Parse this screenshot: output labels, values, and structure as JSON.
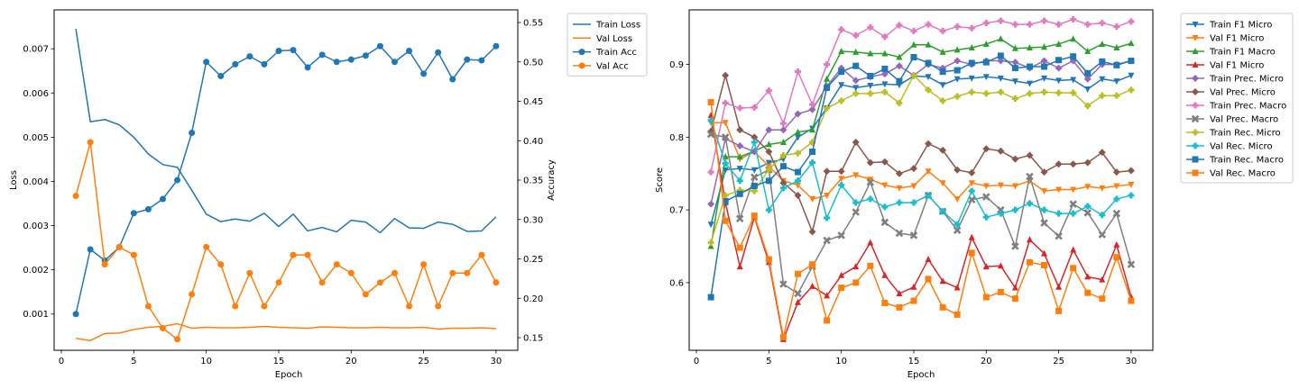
{
  "chart_data": [
    {
      "type": "line",
      "title": "",
      "xlabel": "Epoch",
      "ylabel": "Loss",
      "y2label": "Accuracy",
      "xlim": [
        -0.5,
        31.5
      ],
      "ylim": [
        0.00018,
        0.00788
      ],
      "y2lim": [
        0.134,
        0.566
      ],
      "xticks": [
        0,
        5,
        10,
        15,
        20,
        25,
        30
      ],
      "yticks": [
        0.001,
        0.002,
        0.003,
        0.004,
        0.005,
        0.006,
        0.007
      ],
      "ytick_labels": [
        "0.001",
        "0.002",
        "0.003",
        "0.004",
        "0.005",
        "0.006",
        "0.007"
      ],
      "y2ticks": [
        0.15,
        0.2,
        0.25,
        0.3,
        0.35,
        0.4,
        0.45,
        0.5,
        0.55
      ],
      "y2tick_labels": [
        "0.15",
        "0.20",
        "0.25",
        "0.30",
        "0.35",
        "0.40",
        "0.45",
        "0.50",
        "0.55"
      ],
      "grid": false,
      "legend_position": "outside-upper-right",
      "x": [
        1,
        2,
        3,
        4,
        5,
        6,
        7,
        8,
        9,
        10,
        11,
        12,
        13,
        14,
        15,
        16,
        17,
        18,
        19,
        20,
        21,
        22,
        23,
        24,
        25,
        26,
        27,
        28,
        29,
        30
      ],
      "series": [
        {
          "name": "Train Loss",
          "axis": "left",
          "color": "#1f77b4",
          "marker": "none",
          "values": [
            0.00745,
            0.00535,
            0.0054,
            0.00528,
            0.005,
            0.00462,
            0.00438,
            0.00432,
            0.0038,
            0.00326,
            0.00309,
            0.00315,
            0.0031,
            0.00328,
            0.00298,
            0.00326,
            0.00288,
            0.00296,
            0.00286,
            0.00312,
            0.00308,
            0.00284,
            0.00316,
            0.00295,
            0.00294,
            0.00308,
            0.00303,
            0.00287,
            0.00288,
            0.0032
          ]
        },
        {
          "name": "Val Loss",
          "axis": "left",
          "color": "#ff7f0e",
          "marker": "none",
          "values": [
            0.00045,
            0.0004,
            0.00056,
            0.00057,
            0.00065,
            0.0007,
            0.00072,
            0.00078,
            0.00068,
            0.0007,
            0.00069,
            0.00069,
            0.0007,
            0.00072,
            0.0007,
            0.00069,
            0.00068,
            0.00071,
            0.0007,
            0.00069,
            0.00069,
            0.0007,
            0.00069,
            0.00069,
            0.0007,
            0.00066,
            0.00068,
            0.00068,
            0.00069,
            0.00067
          ]
        },
        {
          "name": "Train Acc",
          "axis": "right",
          "color": "#1f77b4",
          "marker": "circle",
          "values": [
            0.18,
            0.262,
            0.248,
            0.265,
            0.308,
            0.313,
            0.326,
            0.35,
            0.41,
            0.5,
            0.482,
            0.497,
            0.507,
            0.497,
            0.514,
            0.515,
            0.493,
            0.509,
            0.5,
            0.503,
            0.508,
            0.52,
            0.5,
            0.514,
            0.485,
            0.512,
            0.478,
            0.503,
            0.502,
            0.52
          ]
        },
        {
          "name": "Val Acc",
          "axis": "right",
          "color": "#ff7f0e",
          "marker": "circle",
          "values": [
            0.33,
            0.398,
            0.243,
            0.265,
            0.255,
            0.19,
            0.162,
            0.148,
            0.205,
            0.265,
            0.243,
            0.19,
            0.232,
            0.19,
            0.22,
            0.255,
            0.255,
            0.22,
            0.243,
            0.232,
            0.205,
            0.22,
            0.232,
            0.19,
            0.243,
            0.19,
            0.232,
            0.232,
            0.255,
            0.22
          ]
        }
      ]
    },
    {
      "type": "line",
      "title": "",
      "xlabel": "Epoch",
      "ylabel": "Score",
      "xlim": [
        -0.5,
        31.5
      ],
      "ylim": [
        0.507,
        0.975
      ],
      "xticks": [
        0,
        5,
        10,
        15,
        20,
        25,
        30
      ],
      "yticks": [
        0.6,
        0.7,
        0.8,
        0.9
      ],
      "ytick_labels": [
        "0.6",
        "0.7",
        "0.8",
        "0.9"
      ],
      "grid": false,
      "legend_position": "outside-upper-right",
      "x": [
        1,
        2,
        3,
        4,
        5,
        6,
        7,
        8,
        9,
        10,
        11,
        12,
        13,
        14,
        15,
        16,
        17,
        18,
        19,
        20,
        21,
        22,
        23,
        24,
        25,
        26,
        27,
        28,
        29,
        30
      ],
      "series": [
        {
          "name": "Train F1 Micro",
          "color": "#1f77b4",
          "marker": "tri_down",
          "values": [
            0.68,
            0.755,
            0.757,
            0.755,
            0.765,
            0.77,
            0.8,
            0.812,
            0.84,
            0.872,
            0.868,
            0.871,
            0.873,
            0.872,
            0.884,
            0.883,
            0.872,
            0.88,
            0.881,
            0.883,
            0.881,
            0.877,
            0.874,
            0.881,
            0.878,
            0.879,
            0.866,
            0.88,
            0.877,
            0.885
          ]
        },
        {
          "name": "Val F1 Micro",
          "color": "#ff7f0e",
          "marker": "tri_down",
          "values": [
            0.82,
            0.82,
            0.77,
            0.78,
            0.76,
            0.74,
            0.734,
            0.715,
            0.72,
            0.743,
            0.748,
            0.742,
            0.734,
            0.73,
            0.733,
            0.753,
            0.737,
            0.715,
            0.737,
            0.733,
            0.734,
            0.733,
            0.74,
            0.726,
            0.728,
            0.728,
            0.732,
            0.73,
            0.733,
            0.735
          ]
        },
        {
          "name": "Train F1 Macro",
          "color": "#2ca02c",
          "marker": "tri_up",
          "values": [
            0.65,
            0.773,
            0.773,
            0.781,
            0.79,
            0.793,
            0.807,
            0.81,
            0.88,
            0.918,
            0.917,
            0.915,
            0.915,
            0.91,
            0.927,
            0.927,
            0.917,
            0.92,
            0.923,
            0.928,
            0.935,
            0.922,
            0.923,
            0.924,
            0.928,
            0.935,
            0.918,
            0.928,
            0.923,
            0.929
          ]
        },
        {
          "name": "Val F1 Micro",
          "color": "#d62728",
          "marker": "tri_up",
          "values": [
            0.83,
            0.71,
            0.622,
            0.69,
            0.628,
            0.522,
            0.573,
            0.595,
            0.582,
            0.61,
            0.622,
            0.655,
            0.61,
            0.585,
            0.594,
            0.632,
            0.602,
            0.593,
            0.662,
            0.622,
            0.623,
            0.593,
            0.659,
            0.64,
            0.594,
            0.645,
            0.608,
            0.604,
            0.652,
            0.58
          ]
        },
        {
          "name": "Train Prec. Micro",
          "color": "#9467bd",
          "marker": "diamond",
          "values": [
            0.708,
            0.798,
            0.788,
            0.78,
            0.81,
            0.81,
            0.832,
            0.838,
            0.87,
            0.895,
            0.878,
            0.883,
            0.887,
            0.898,
            0.885,
            0.9,
            0.895,
            0.905,
            0.9,
            0.905,
            0.905,
            0.903,
            0.895,
            0.905,
            0.895,
            0.905,
            0.88,
            0.9,
            0.9,
            0.905
          ]
        },
        {
          "name": "Val Prec. Micro",
          "color": "#8c564b",
          "marker": "diamond",
          "values": [
            0.808,
            0.885,
            0.81,
            0.8,
            0.78,
            0.737,
            0.72,
            0.67,
            0.753,
            0.753,
            0.793,
            0.765,
            0.766,
            0.75,
            0.757,
            0.791,
            0.782,
            0.755,
            0.751,
            0.784,
            0.781,
            0.77,
            0.775,
            0.752,
            0.763,
            0.763,
            0.765,
            0.779,
            0.752,
            0.754
          ]
        },
        {
          "name": "Train Prec. Macro",
          "color": "#e377c2",
          "marker": "plus",
          "values": [
            0.752,
            0.847,
            0.84,
            0.841,
            0.864,
            0.819,
            0.89,
            0.845,
            0.9,
            0.948,
            0.94,
            0.951,
            0.938,
            0.954,
            0.946,
            0.955,
            0.946,
            0.952,
            0.95,
            0.957,
            0.96,
            0.955,
            0.955,
            0.96,
            0.955,
            0.962,
            0.955,
            0.957,
            0.952,
            0.959
          ]
        },
        {
          "name": "Val Prec. Macro",
          "color": "#7f7f7f",
          "marker": "x",
          "values": [
            0.804,
            0.8,
            0.688,
            0.745,
            0.755,
            0.598,
            0.585,
            0.622,
            0.658,
            0.665,
            0.697,
            0.738,
            0.683,
            0.668,
            0.665,
            0.72,
            0.698,
            0.672,
            0.714,
            0.718,
            0.7,
            0.65,
            0.746,
            0.682,
            0.664,
            0.708,
            0.696,
            0.666,
            0.695,
            0.625
          ]
        },
        {
          "name": "Train Rec. Micro",
          "color": "#bcbd22",
          "marker": "plus",
          "values": [
            0.655,
            0.72,
            0.727,
            0.726,
            0.756,
            0.775,
            0.778,
            0.793,
            0.84,
            0.85,
            0.86,
            0.86,
            0.862,
            0.847,
            0.885,
            0.865,
            0.85,
            0.856,
            0.862,
            0.86,
            0.862,
            0.853,
            0.86,
            0.862,
            0.861,
            0.861,
            0.843,
            0.857,
            0.857,
            0.865
          ]
        },
        {
          "name": "Val Rec. Micro",
          "color": "#17becf",
          "marker": "plus",
          "values": [
            0.823,
            0.764,
            0.74,
            0.793,
            0.7,
            0.73,
            0.74,
            0.765,
            0.689,
            0.734,
            0.71,
            0.715,
            0.704,
            0.71,
            0.71,
            0.72,
            0.698,
            0.68,
            0.726,
            0.69,
            0.695,
            0.7,
            0.709,
            0.7,
            0.695,
            0.695,
            0.705,
            0.693,
            0.715,
            0.72
          ]
        },
        {
          "name": "Train Rec. Macro",
          "color": "#1f77b4",
          "marker": "square",
          "values": [
            0.58,
            0.712,
            0.722,
            0.733,
            0.74,
            0.76,
            0.752,
            0.78,
            0.868,
            0.89,
            0.898,
            0.884,
            0.894,
            0.877,
            0.91,
            0.902,
            0.89,
            0.892,
            0.902,
            0.903,
            0.912,
            0.895,
            0.897,
            0.897,
            0.906,
            0.911,
            0.888,
            0.904,
            0.899,
            0.905
          ]
        },
        {
          "name": "Val Rec. Macro",
          "color": "#ff7f0e",
          "marker": "square",
          "values": [
            0.848,
            0.685,
            0.648,
            0.692,
            0.632,
            0.525,
            0.612,
            0.625,
            0.548,
            0.593,
            0.6,
            0.623,
            0.572,
            0.566,
            0.575,
            0.605,
            0.566,
            0.556,
            0.641,
            0.58,
            0.587,
            0.578,
            0.628,
            0.624,
            0.561,
            0.62,
            0.586,
            0.578,
            0.635,
            0.575
          ]
        }
      ]
    }
  ]
}
